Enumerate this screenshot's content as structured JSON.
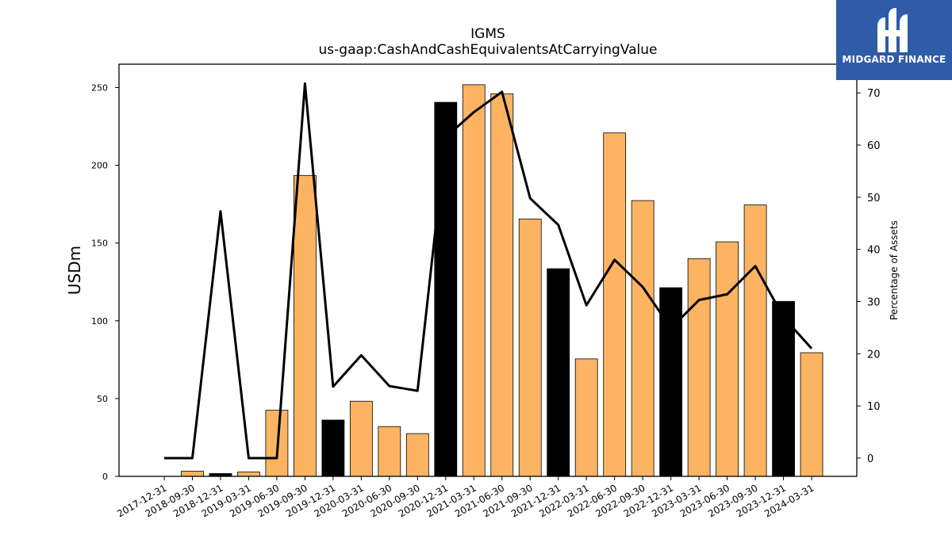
{
  "chart_data": {
    "type": "bar",
    "title": "IGMS",
    "subtitle": "us-gaap:CashAndCashEquivalentsAtCarryingValue",
    "ylabel": "USDm",
    "y2label": "Percentage of Assets",
    "ylim": [
      0,
      265
    ],
    "y2lim": [
      -3.5,
      75.5
    ],
    "yticks": [
      0,
      50,
      100,
      150,
      200,
      250
    ],
    "y2ticks": [
      0,
      10,
      20,
      30,
      40,
      50,
      60,
      70
    ],
    "categories": [
      "2017-12-31",
      "2018-09-30",
      "2018-12-31",
      "2019-03-31",
      "2019-06-30",
      "2019-09-30",
      "2019-12-31",
      "2020-03-31",
      "2020-06-30",
      "2020-09-30",
      "2020-12-31",
      "2021-03-31",
      "2021-06-30",
      "2021-09-30",
      "2021-12-31",
      "2022-03-31",
      "2022-06-30",
      "2022-09-30",
      "2022-12-31",
      "2023-03-31",
      "2023-06-30",
      "2023-09-30",
      "2023-12-31",
      "2024-03-31"
    ],
    "series": [
      {
        "type": "bar",
        "values": [
          0,
          3.3,
          1.8,
          2.8,
          42.5,
          193.5,
          36.2,
          48.3,
          32.0,
          27.5,
          240.5,
          251.8,
          246.0,
          165.5,
          133.5,
          75.5,
          220.8,
          177.3,
          121.3,
          140.0,
          150.8,
          174.5,
          112.5,
          79.5
        ],
        "fiscal_year_end": [
          true,
          false,
          true,
          false,
          false,
          false,
          true,
          false,
          false,
          false,
          true,
          false,
          false,
          false,
          true,
          false,
          false,
          false,
          true,
          false,
          false,
          false,
          true,
          false
        ]
      },
      {
        "type": "line",
        "values": [
          0,
          0,
          47.3,
          0,
          0,
          71.8,
          13.7,
          19.7,
          13.8,
          12.9,
          61.5,
          66.3,
          70.2,
          49.8,
          44.7,
          29.3,
          38.0,
          32.8,
          24.9,
          30.3,
          31.4,
          36.8,
          27.0,
          21.0
        ]
      }
    ],
    "colors": {
      "bar": "#fdb462",
      "bar_fiscal_year_end": "#000000",
      "line": "#000000"
    }
  },
  "logo": {
    "text": "MIDGARD FINANCE"
  }
}
